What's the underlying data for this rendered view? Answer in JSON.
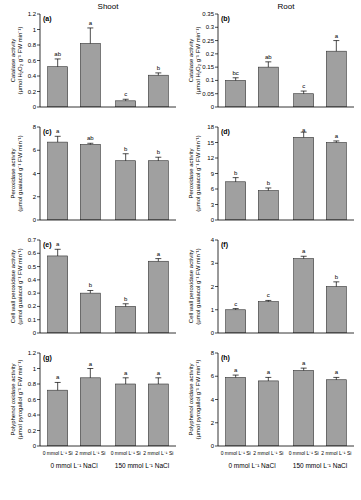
{
  "chart_data": [
    {
      "type": "bar",
      "title": "(a)",
      "subtitle": "Shoot",
      "y_label": "Catalase activity (µmol H₂O₂ g⁻¹ FW min⁻¹)",
      "categories": [
        "0 mmol L⁻¹ Si",
        "2 mmol L⁻¹ Si",
        "0 mmol L⁻¹ Si",
        "2 mmol L⁻¹ Si"
      ],
      "values": [
        0.52,
        0.82,
        0.08,
        0.41
      ],
      "errors": [
        0.1,
        0.2,
        0.02,
        0.03
      ],
      "letters": [
        "ab",
        "a",
        "c",
        "b"
      ],
      "color": "#a0a0a0",
      "ylim": [
        0,
        1.2
      ],
      "yticks": [
        0,
        0.2,
        0.4,
        0.6,
        0.8,
        1,
        1.2
      ],
      "tick_labels": "y"
    },
    {
      "type": "bar",
      "title": "(b)",
      "subtitle": "Root",
      "y_label": "Catalase activity (µmol H₂O₂ g⁻¹ FW min⁻¹)",
      "categories": [
        "0 mmol L⁻¹ Si",
        "2 mmol L⁻¹ Si",
        "0 mmol L⁻¹ Si",
        "2 mmol L⁻¹ Si"
      ],
      "values": [
        0.1,
        0.15,
        0.05,
        0.21
      ],
      "errors": [
        0.01,
        0.02,
        0.01,
        0.04
      ],
      "letters": [
        "bc",
        "ab",
        "c",
        "a"
      ],
      "color": "#a0a0a0",
      "ylim": [
        0,
        0.35
      ],
      "yticks": [
        0,
        0.05,
        0.1,
        0.15,
        0.2,
        0.25,
        0.3,
        0.35
      ],
      "tick_labels": "y"
    },
    {
      "type": "bar",
      "title": "(c)",
      "y_label": "Peroxidase activity (µmol guaiacol g⁻¹ FW min⁻¹)",
      "categories": [
        "0 mmol L⁻¹ Si",
        "2 mmol L⁻¹ Si",
        "0 mmol L⁻¹ Si",
        "2 mmol L⁻¹ Si"
      ],
      "values": [
        6.7,
        6.5,
        5.1,
        5.1
      ],
      "errors": [
        0.5,
        0.1,
        0.6,
        0.3
      ],
      "letters": [
        "a",
        "ab",
        "b",
        "b"
      ],
      "color": "#a0a0a0",
      "ylim": [
        0,
        8
      ],
      "yticks": [
        0,
        2,
        4,
        6,
        8
      ],
      "tick_labels": "y"
    },
    {
      "type": "bar",
      "title": "(d)",
      "y_label": "Peroxidase activity (µmol guaiacol g⁻¹ FW min⁻¹)",
      "categories": [
        "0 mmol L⁻¹ Si",
        "2 mmol L⁻¹ Si",
        "0 mmol L⁻¹ Si",
        "2 mmol L⁻¹ Si"
      ],
      "values": [
        7.4,
        5.7,
        16,
        15
      ],
      "errors": [
        0.8,
        0.5,
        1,
        0.3
      ],
      "letters": [
        "b",
        "b",
        "a",
        "a"
      ],
      "color": "#a0a0a0",
      "ylim": [
        0,
        18
      ],
      "yticks": [
        0,
        3,
        6,
        9,
        12,
        15,
        18
      ],
      "tick_labels": "y"
    },
    {
      "type": "bar",
      "title": "(e)",
      "y_label": "Cell wall peroxidase activity (µmol guaiacol g⁻¹ FW min⁻¹)",
      "categories": [
        "0 mmol L⁻¹ Si",
        "2 mmol L⁻¹ Si",
        "0 mmol L⁻¹ Si",
        "2 mmol L⁻¹ Si"
      ],
      "values": [
        0.58,
        0.3,
        0.2,
        0.54
      ],
      "errors": [
        0.05,
        0.02,
        0.02,
        0.02
      ],
      "letters": [
        "a",
        "b",
        "b",
        "a"
      ],
      "color": "#a0a0a0",
      "ylim": [
        0,
        0.7
      ],
      "yticks": [
        0,
        0.1,
        0.2,
        0.3,
        0.4,
        0.5,
        0.6,
        0.7
      ],
      "tick_labels": "y"
    },
    {
      "type": "bar",
      "title": "(f)",
      "y_label": "Cell wall peroxidase activity (µmol guaiacol g⁻¹ FW min⁻¹)",
      "categories": [
        "0 mmol L⁻¹ Si",
        "2 mmol L⁻¹ Si",
        "0 mmol L⁻¹ Si",
        "2 mmol L⁻¹ Si"
      ],
      "values": [
        1,
        1.35,
        3.2,
        2
      ],
      "errors": [
        0.05,
        0.05,
        0.1,
        0.2
      ],
      "letters": [
        "c",
        "c",
        "a",
        "b"
      ],
      "color": "#a0a0a0",
      "ylim": [
        0,
        4
      ],
      "yticks": [
        0,
        1,
        2,
        3,
        4
      ],
      "tick_labels": "y"
    },
    {
      "type": "bar",
      "title": "(g)",
      "y_label": "Polyphenol oxidase activity (µmol pyrogallol g⁻¹ FW min⁻¹)",
      "categories": [
        "0 mmol L⁻¹ Si",
        "2 mmol L⁻¹ Si",
        "0 mmol L⁻¹ Si",
        "2 mmol L⁻¹ Si"
      ],
      "group_labels": [
        "0 mmol L⁻¹ NaCl",
        "150 mmol L⁻¹ NaCl"
      ],
      "values": [
        0.72,
        0.88,
        0.8,
        0.8
      ],
      "errors": [
        0.1,
        0.12,
        0.08,
        0.08
      ],
      "letters": [
        "a",
        "a",
        "a",
        "a"
      ],
      "color": "#a0a0a0",
      "ylim": [
        0,
        1.2
      ],
      "yticks": [
        0,
        0.2,
        0.4,
        0.6,
        0.8,
        1,
        1.2
      ]
    },
    {
      "type": "bar",
      "title": "(h)",
      "y_label": "Polyphenol oxidase activity (µmol pyrogallol g⁻¹ FW min⁻¹)",
      "categories": [
        "0 mmol L⁻¹ Si",
        "2 mmol L⁻¹ Si",
        "0 mmol L⁻¹ Si",
        "2 mmol L⁻¹ Si"
      ],
      "group_labels": [
        "0 mmol L⁻¹ NaCl",
        "150 mmol L⁻¹ NaCl"
      ],
      "values": [
        5.9,
        5.6,
        6.5,
        5.7
      ],
      "errors": [
        0.2,
        0.3,
        0.2,
        0.2
      ],
      "letters": [
        "a",
        "a",
        "a",
        "a"
      ],
      "color": "#a0a0a0",
      "ylim": [
        0,
        8
      ],
      "yticks": [
        0,
        2,
        4,
        6,
        8
      ]
    }
  ]
}
